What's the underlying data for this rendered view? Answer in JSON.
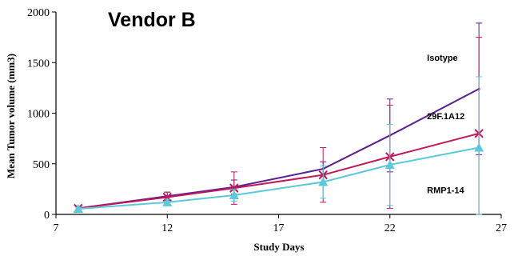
{
  "chart_data": {
    "type": "line",
    "title": "Vendor B",
    "xlabel": "Study Days",
    "ylabel": "Mean Tumor volume (mm3)",
    "xlim": [
      7,
      27
    ],
    "ylim": [
      0,
      2000
    ],
    "xticks": [
      7,
      12,
      17,
      22,
      27
    ],
    "yticks": [
      0,
      500,
      1000,
      1500,
      2000
    ],
    "grid": false,
    "series": [
      {
        "name": "Isotype",
        "color": "#5b1e91",
        "marker": "none",
        "x": [
          8,
          12,
          15,
          19,
          22,
          26
        ],
        "y": [
          60,
          180,
          270,
          450,
          780,
          1240
        ],
        "err": [
          20,
          40,
          70,
          70,
          360,
          650
        ]
      },
      {
        "name": "29F.1A12",
        "color": "#c0185a",
        "marker": "x",
        "x": [
          8,
          12,
          15,
          19,
          22,
          26
        ],
        "y": [
          60,
          170,
          260,
          390,
          570,
          800
        ],
        "err": [
          20,
          50,
          160,
          270,
          510,
          950
        ]
      },
      {
        "name": "RMP1-14",
        "color": "#5bc8dc",
        "marker": "triangle",
        "x": [
          8,
          12,
          15,
          19,
          22,
          26
        ],
        "y": [
          55,
          120,
          190,
          320,
          490,
          660
        ],
        "err": [
          15,
          30,
          60,
          160,
          400,
          700
        ]
      }
    ]
  }
}
